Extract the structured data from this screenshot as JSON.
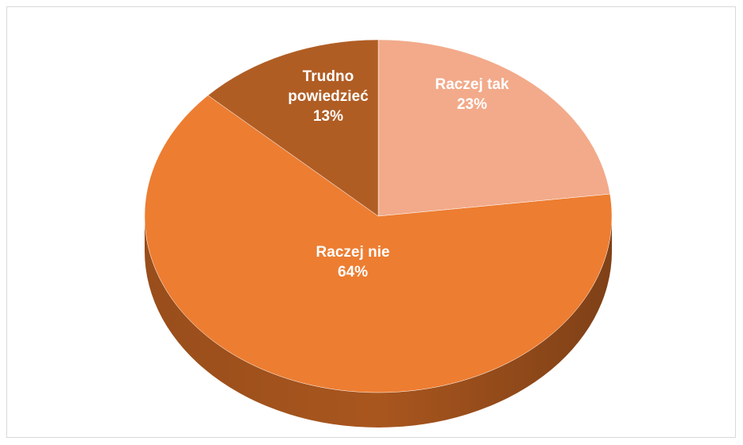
{
  "chart_data": {
    "type": "pie",
    "style": "3d",
    "slices": [
      {
        "label": "Raczej tak",
        "label_lines": [
          "Raczej tak"
        ],
        "value": 23,
        "value_label": "23%",
        "color": "#F2AA8A",
        "side_color": "#C98A6C"
      },
      {
        "label": "Raczej nie",
        "label_lines": [
          "Raczej nie"
        ],
        "value": 64,
        "value_label": "64%",
        "color": "#ED7D31",
        "side_color": "#A9561E"
      },
      {
        "label": "Trudno powiedzieć",
        "label_lines": [
          "Trudno",
          "powiedzieć"
        ],
        "value": 13,
        "value_label": "13%",
        "color": "#B05D24",
        "side_color": "#7A3F16"
      }
    ],
    "start_angle_deg": 0,
    "direction": "clockwise",
    "legend": "none"
  }
}
